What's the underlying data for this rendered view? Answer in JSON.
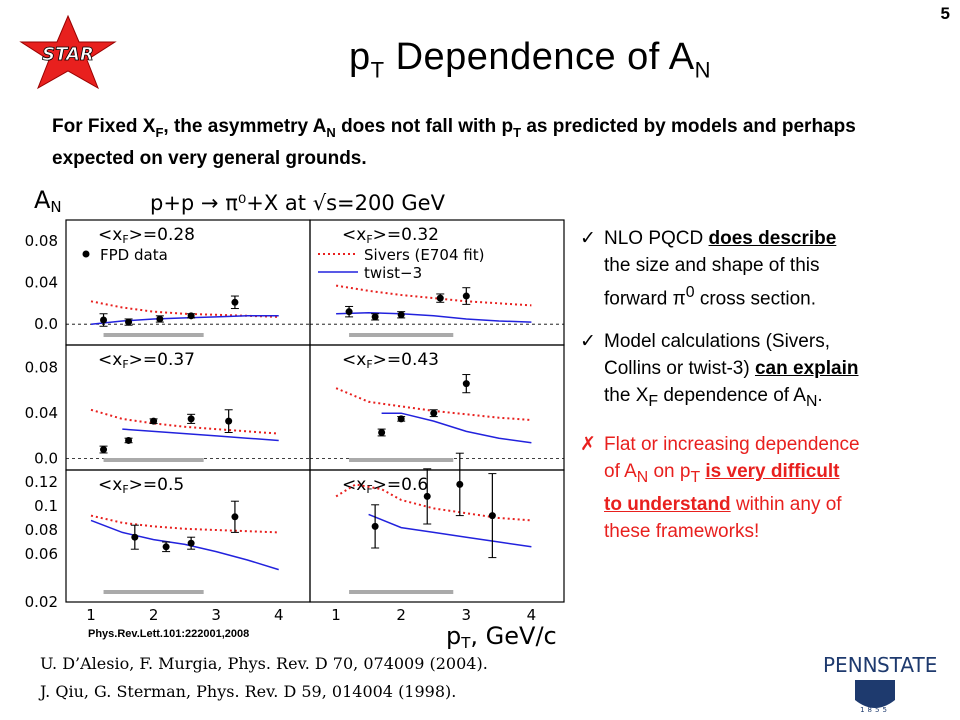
{
  "slide_number": "5",
  "star_logo_text": "STAR",
  "title": {
    "main": "p",
    "sub": "T",
    "mid": " Dependence of A",
    "sub2": "N"
  },
  "intro": {
    "p1": "For Fixed X",
    "s1": "F",
    "p2": ", the asymmetry A",
    "s2": "N",
    "p3": " does not fall with p",
    "s3": "T",
    "p4": " as predicted by models and perhaps expected on very general grounds."
  },
  "figure": {
    "process": "p+p → π⁰+X at √s=200 GeV",
    "ylabel": "A",
    "ylabel_sub": "N",
    "xlabel": "p",
    "xlabel_sub": "T",
    "xlabel_unit": ", GeV/c",
    "legend": {
      "data": "FPD data",
      "sivers": "Sivers (E704 fit)",
      "twist": "twist−3"
    },
    "panels": [
      {
        "label": "<x",
        "label_sub": "F",
        "value": ">=0.28"
      },
      {
        "label": "<x",
        "label_sub": "F",
        "value": ">=0.32"
      },
      {
        "label": "<x",
        "label_sub": "F",
        "value": ">=0.37"
      },
      {
        "label": "<x",
        "label_sub": "F",
        "value": ">=0.43"
      },
      {
        "label": "<x",
        "label_sub": "F",
        "value": ">=0.5"
      },
      {
        "label": "<x",
        "label_sub": "F",
        "value": ">=0.6"
      }
    ],
    "y_ticks_top": [
      "0.08",
      "0.04",
      "0.0"
    ],
    "y_ticks_mid": [
      "0.08",
      "0.04",
      "0.0"
    ],
    "y_ticks_bot": [
      "0.12",
      "0.1",
      "0.08",
      "0.06",
      "0.02"
    ],
    "x_ticks_left": [
      "1",
      "2",
      "3",
      "4"
    ],
    "x_ticks_right": [
      "1",
      "2",
      "3",
      "4"
    ],
    "citation": "Phys.Rev.Lett.101:222001,2008"
  },
  "chart_data": {
    "type": "scatter",
    "title": "p+p → π⁰+X at √s=200 GeV",
    "xlabel": "pT, GeV/c",
    "ylabel": "AN",
    "panels": [
      {
        "xF": 0.28,
        "ylim": [
          -0.02,
          0.1
        ],
        "data": {
          "x": [
            1.2,
            1.6,
            2.1,
            2.6,
            3.3
          ],
          "y": [
            0.004,
            0.002,
            0.005,
            0.008,
            0.021
          ],
          "err": [
            0.006,
            0.003,
            0.003,
            0.002,
            0.006
          ]
        },
        "sivers": {
          "x": [
            1.0,
            1.5,
            2.0,
            2.5,
            3.0,
            3.5,
            4.0
          ],
          "y": [
            0.022,
            0.016,
            0.012,
            0.01,
            0.009,
            0.008,
            0.007
          ]
        },
        "twist3": {
          "x": [
            1.0,
            1.5,
            2.0,
            2.5,
            3.0,
            3.5,
            4.0
          ],
          "y": [
            0.0,
            0.003,
            0.005,
            0.006,
            0.007,
            0.008,
            0.008
          ]
        }
      },
      {
        "xF": 0.32,
        "ylim": [
          -0.02,
          0.1
        ],
        "data": {
          "x": [
            1.2,
            1.6,
            2.0,
            2.6,
            3.0
          ],
          "y": [
            0.012,
            0.007,
            0.009,
            0.025,
            0.027
          ],
          "err": [
            0.005,
            0.003,
            0.003,
            0.004,
            0.008
          ]
        },
        "sivers": {
          "x": [
            1.0,
            1.5,
            2.0,
            2.5,
            3.0,
            3.5,
            4.0
          ],
          "y": [
            0.037,
            0.032,
            0.028,
            0.025,
            0.022,
            0.02,
            0.018
          ]
        },
        "twist3": {
          "x": [
            1.0,
            1.5,
            2.0,
            2.5,
            3.0,
            3.5,
            4.0
          ],
          "y": [
            0.01,
            0.011,
            0.01,
            0.008,
            0.005,
            0.003,
            0.002
          ]
        }
      },
      {
        "xF": 0.37,
        "ylim": [
          -0.01,
          0.1
        ],
        "data": {
          "x": [
            1.2,
            1.6,
            2.0,
            2.6,
            3.2
          ],
          "y": [
            0.008,
            0.016,
            0.033,
            0.035,
            0.033
          ],
          "err": [
            0.003,
            0.002,
            0.002,
            0.004,
            0.01
          ]
        },
        "sivers": {
          "x": [
            1.0,
            1.5,
            2.0,
            2.5,
            3.0,
            3.5,
            4.0
          ],
          "y": [
            0.043,
            0.035,
            0.031,
            0.028,
            0.026,
            0.024,
            0.022
          ]
        },
        "twist3": {
          "x": [
            1.5,
            2.0,
            2.5,
            3.0,
            3.5,
            4.0
          ],
          "y": [
            0.026,
            0.024,
            0.022,
            0.02,
            0.018,
            0.016
          ]
        }
      },
      {
        "xF": 0.43,
        "ylim": [
          -0.01,
          0.1
        ],
        "data": {
          "x": [
            1.7,
            2.0,
            2.5,
            3.0
          ],
          "y": [
            0.023,
            0.035,
            0.04,
            0.066
          ],
          "err": [
            0.003,
            0.002,
            0.003,
            0.008
          ]
        },
        "sivers": {
          "x": [
            1.0,
            1.5,
            2.0,
            2.5,
            3.0,
            3.5,
            4.0
          ],
          "y": [
            0.062,
            0.05,
            0.046,
            0.042,
            0.039,
            0.036,
            0.034
          ]
        },
        "twist3": {
          "x": [
            1.7,
            2.0,
            2.5,
            3.0,
            3.5,
            4.0
          ],
          "y": [
            0.04,
            0.04,
            0.033,
            0.024,
            0.018,
            0.014
          ]
        }
      },
      {
        "xF": 0.5,
        "ylim": [
          0.02,
          0.13
        ],
        "data": {
          "x": [
            1.7,
            2.2,
            2.6,
            3.3
          ],
          "y": [
            0.074,
            0.066,
            0.069,
            0.091
          ],
          "err": [
            0.01,
            0.004,
            0.005,
            0.013
          ]
        },
        "sivers": {
          "x": [
            1.0,
            1.5,
            2.0,
            2.5,
            3.0,
            3.5,
            4.0
          ],
          "y": [
            0.092,
            0.086,
            0.083,
            0.081,
            0.08,
            0.079,
            0.078
          ]
        },
        "twist3": {
          "x": [
            1.0,
            1.5,
            2.0,
            2.5,
            3.0,
            3.5,
            4.0
          ],
          "y": [
            0.088,
            0.078,
            0.072,
            0.068,
            0.062,
            0.055,
            0.047
          ]
        }
      },
      {
        "xF": 0.6,
        "ylim": [
          0.02,
          0.13
        ],
        "data": {
          "x": [
            1.6,
            2.4,
            2.9,
            3.4
          ],
          "y": [
            0.083,
            0.108,
            0.118,
            0.092
          ],
          "err": [
            0.018,
            0.023,
            0.026,
            0.035
          ]
        },
        "sivers": {
          "x": [
            1.0,
            1.3,
            1.7,
            2.0,
            2.5,
            3.0,
            3.5,
            4.0
          ],
          "y": [
            0.108,
            0.118,
            0.114,
            0.105,
            0.098,
            0.094,
            0.09,
            0.088
          ]
        },
        "twist3": {
          "x": [
            1.5,
            2.0,
            2.5,
            3.0,
            3.5,
            4.0
          ],
          "y": [
            0.093,
            0.082,
            0.078,
            0.074,
            0.07,
            0.066
          ]
        }
      }
    ]
  },
  "bullets": {
    "b1": {
      "mark": "✓",
      "pre": " NLO PQCD ",
      "u": "does describe",
      "post1": "the size and shape of this",
      "post2a": "forward ",
      "pi": "π",
      "pi_sup": "0",
      "post2b": " cross section."
    },
    "b2": {
      "mark": "✓",
      "pre": " Model calculations (Sivers,",
      "mid": "Collins or twist-3) ",
      "u": "can explain",
      "post_a": "the X",
      "s1": "F",
      "post_b": " dependence of A",
      "s2": "N",
      "post_c": "."
    },
    "b3": {
      "mark": "✗",
      "pre": " Flat or increasing dependence",
      "mid_a": "of A",
      "s1": "N",
      "mid_b": " on p",
      "s2": "T",
      "u1": "is very difficult",
      "u2": "to understand",
      "post": " within any of",
      "post2": "these frameworks!"
    }
  },
  "references": [
    "U. D’Alesio, F. Murgia, Phys. Rev. D 70, 074009 (2004).",
    "J. Qiu, G. Sterman, Phys. Rev. D 59, 014004 (1998)."
  ],
  "pennstate": {
    "penn": "PENN",
    "state": "STATE",
    "year": "1855"
  },
  "colors": {
    "star_red": "#e8201e",
    "twist3": "#2222dd",
    "sivers": "#e8201e"
  }
}
